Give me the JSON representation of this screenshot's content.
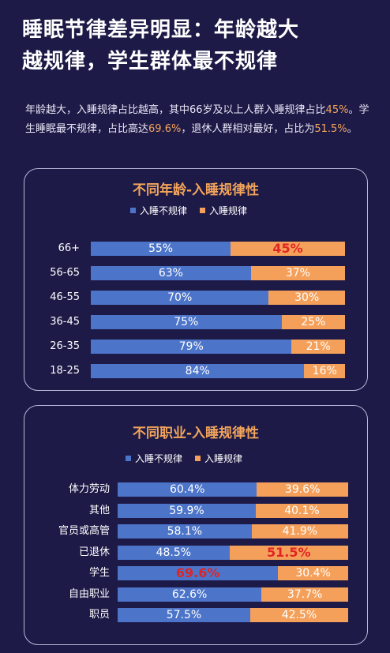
{
  "title_line1": "睡眠节律差异明显：年龄越大",
  "title_line2": "越规律，学生群体最不规律",
  "desc": {
    "p1": "年龄越大，入睡规律占比越高，其中66岁及以上人群入睡规律占比",
    "v1": "45%",
    "p2": "。学生睡眠最不规律，占比高达",
    "v2": "69.6%",
    "p3": "，退休人群相对最好，占比为",
    "v3": "51.5%",
    "p4": "。"
  },
  "colors": {
    "irregular": "#4c74c9",
    "regular": "#f5a05a",
    "highlight": "#e02424",
    "accent": "#f3a45a"
  },
  "chart_data": [
    {
      "type": "bar",
      "orientation": "horizontal",
      "stacked": "percent",
      "title": "不同年龄-入睡规律性",
      "legend_position": "top",
      "categories": [
        "66+",
        "56-65",
        "46-55",
        "36-45",
        "26-35",
        "18-25"
      ],
      "series": [
        {
          "name": "入睡不规律",
          "values": [
            55,
            63,
            70,
            75,
            79,
            84
          ],
          "labels": [
            "55%",
            "63%",
            "70%",
            "75%",
            "79%",
            "84%"
          ]
        },
        {
          "name": "入睡规律",
          "values": [
            45,
            37,
            30,
            25,
            21,
            16
          ],
          "labels": [
            "45%",
            "37%",
            "30%",
            "25%",
            "21%",
            "16%"
          ]
        }
      ],
      "emphasis": [
        {
          "category": "66+",
          "series": "入睡规律"
        }
      ]
    },
    {
      "type": "bar",
      "orientation": "horizontal",
      "stacked": "percent",
      "title": "不同职业-入睡规律性",
      "legend_position": "top",
      "categories": [
        "体力劳动",
        "其他",
        "官员或高管",
        "已退休",
        "学生",
        "自由职业",
        "职员"
      ],
      "series": [
        {
          "name": "入睡不规律",
          "values": [
            60.4,
            59.9,
            58.1,
            48.5,
            69.6,
            62.6,
            57.5
          ],
          "labels": [
            "60.4%",
            "59.9%",
            "58.1%",
            "48.5%",
            "69.6%",
            "62.6%",
            "57.5%"
          ]
        },
        {
          "name": "入睡规律",
          "values": [
            39.6,
            40.1,
            41.9,
            51.5,
            30.4,
            37.7,
            42.5
          ],
          "labels": [
            "39.6%",
            "40.1%",
            "41.9%",
            "51.5%",
            "30.4%",
            "37.7%",
            "42.5%"
          ]
        }
      ],
      "emphasis": [
        {
          "category": "已退休",
          "series": "入睡规律"
        },
        {
          "category": "学生",
          "series": "入睡不规律"
        }
      ]
    }
  ]
}
